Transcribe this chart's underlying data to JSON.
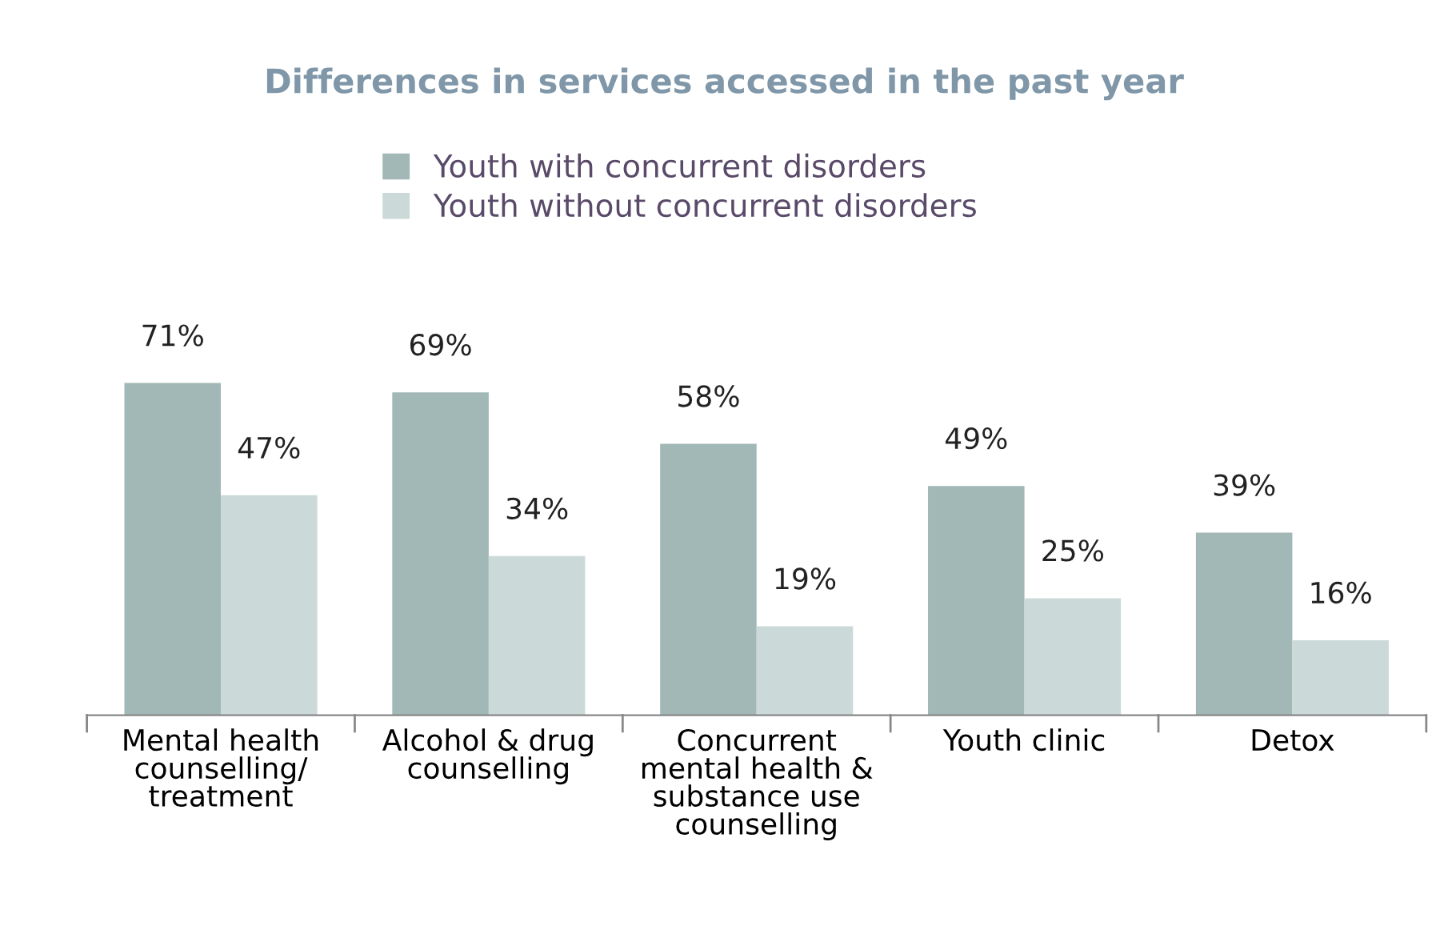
{
  "chart_data": {
    "type": "bar",
    "title": "Differences in services accessed in the past year",
    "categories": [
      "Mental health\ncounselling/\ntreatment",
      "Alcohol & drug\ncounselling",
      "Concurrent\nmental health &\nsubstance use\ncounselling",
      "Youth clinic",
      "Detox"
    ],
    "series": [
      {
        "name": "Youth with concurrent disorders",
        "color": "#a1b8b6",
        "values": [
          71,
          69,
          58,
          49,
          39
        ],
        "value_labels": [
          "71%",
          "69%",
          "58%",
          "49%",
          "39%"
        ]
      },
      {
        "name": "Youth without concurrent disorders",
        "color": "#cbdad8",
        "values": [
          47,
          34,
          19,
          25,
          16
        ],
        "value_labels": [
          "47%",
          "34%",
          "19%",
          "25%",
          "16%"
        ]
      }
    ],
    "legend": "top",
    "tick_labels": "x",
    "grid": false
  }
}
